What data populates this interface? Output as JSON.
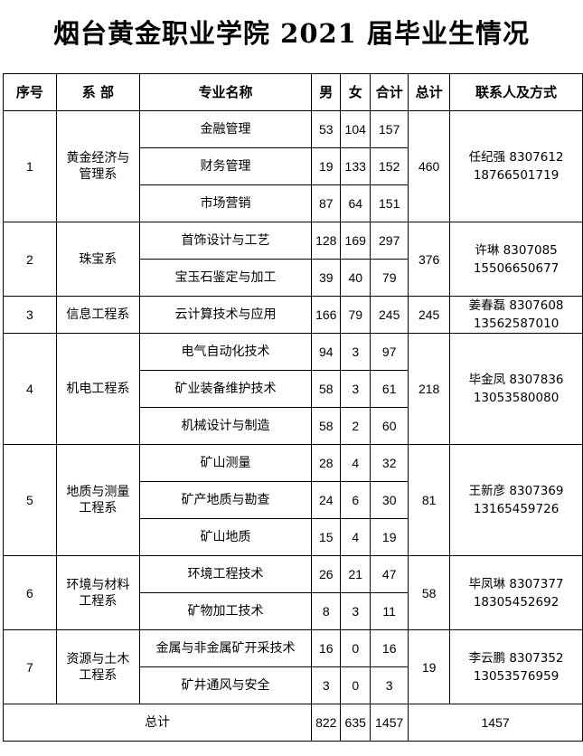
{
  "title": "烟台黄金职业学院 2021 届毕业生情况",
  "headers": [
    "序号",
    "系 部",
    "专业名称",
    "男",
    "女",
    "合计",
    "总计",
    "联系人及方式"
  ],
  "departments": [
    {
      "no": "1",
      "name": "黄金经济与管理系",
      "total": "460",
      "contact_name": "任纪强 8307612",
      "contact_phone": "18766501719",
      "majors": [
        {
          "name": "金融管理",
          "male": "53",
          "female": "104",
          "sum": "157"
        },
        {
          "name": "财务管理",
          "male": "19",
          "female": "133",
          "sum": "152"
        },
        {
          "name": "市场营销",
          "male": "87",
          "female": "64",
          "sum": "151"
        }
      ]
    },
    {
      "no": "2",
      "name": "珠宝系",
      "total": "376",
      "contact_name": "许琳 8307085",
      "contact_phone": "15506650677",
      "majors": [
        {
          "name": "首饰设计与工艺",
          "male": "128",
          "female": "169",
          "sum": "297"
        },
        {
          "name": "宝玉石鉴定与加工",
          "male": "39",
          "female": "40",
          "sum": "79"
        }
      ]
    },
    {
      "no": "3",
      "name": "信息工程系",
      "total": "245",
      "contact_name": "姜春磊 8307608",
      "contact_phone": "13562587010",
      "majors": [
        {
          "name": "云计算技术与应用",
          "male": "166",
          "female": "79",
          "sum": "245"
        }
      ]
    },
    {
      "no": "4",
      "name": "机电工程系",
      "total": "218",
      "contact_name": "毕金凤 8307836",
      "contact_phone": "13053580080",
      "majors": [
        {
          "name": "电气自动化技术",
          "male": "94",
          "female": "3",
          "sum": "97"
        },
        {
          "name": "矿业装备维护技术",
          "male": "58",
          "female": "3",
          "sum": "61"
        },
        {
          "name": "机械设计与制造",
          "male": "58",
          "female": "2",
          "sum": "60"
        }
      ]
    },
    {
      "no": "5",
      "name": "地质与测量工程系",
      "total": "81",
      "contact_name": "王新彦 8307369",
      "contact_phone": "13165459726",
      "majors": [
        {
          "name": "矿山测量",
          "male": "28",
          "female": "4",
          "sum": "32"
        },
        {
          "name": "矿产地质与勘查",
          "male": "24",
          "female": "6",
          "sum": "30"
        },
        {
          "name": "矿山地质",
          "male": "15",
          "female": "4",
          "sum": "19"
        }
      ]
    },
    {
      "no": "6",
      "name": "环境与材料工程系",
      "total": "58",
      "contact_name": "毕凤琳 8307377",
      "contact_phone": "18305452692",
      "majors": [
        {
          "name": "环境工程技术",
          "male": "26",
          "female": "21",
          "sum": "47"
        },
        {
          "name": "矿物加工技术",
          "male": "8",
          "female": "3",
          "sum": "11"
        }
      ]
    },
    {
      "no": "7",
      "name": "资源与土木工程系",
      "total": "19",
      "contact_name": "李云鹏 8307352",
      "contact_phone": "13053576959",
      "majors": [
        {
          "name": "金属与非金属矿开采技术",
          "male": "16",
          "female": "0",
          "sum": "16"
        },
        {
          "name": "矿井通风与安全",
          "male": "3",
          "female": "0",
          "sum": "3"
        }
      ]
    }
  ],
  "footer": {
    "label": "总计",
    "male": "822",
    "female": "635",
    "sum": "1457",
    "total": "1457"
  }
}
